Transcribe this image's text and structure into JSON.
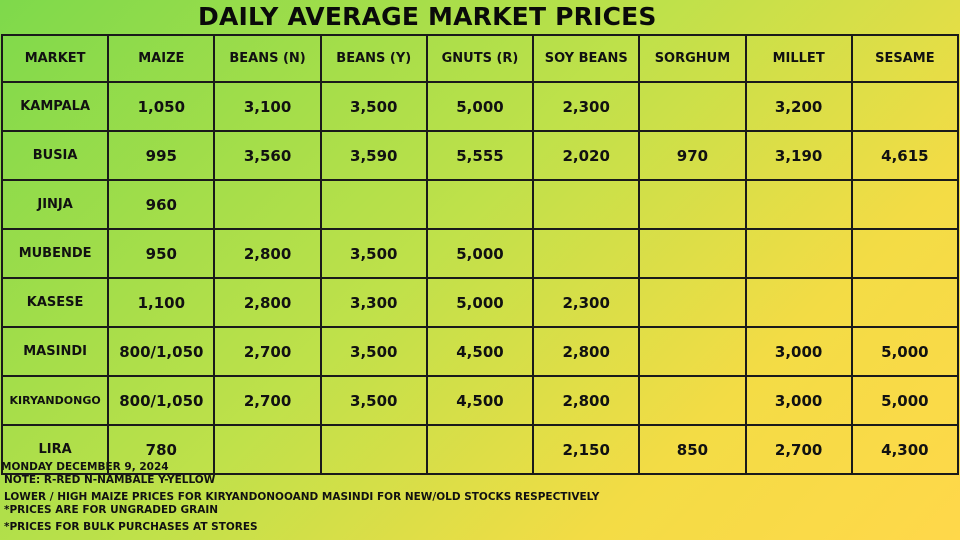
{
  "title": "DAILY AVERAGE MARKET PRICES",
  "table": {
    "headers": [
      "MARKET",
      "MAIZE",
      "BEANS (N)",
      "BEANS (Y)",
      "GNUTS (R)",
      "SOY BEANS",
      "SORGHUM",
      "MILLET",
      "SESAME"
    ],
    "rows": [
      [
        "KAMPALA",
        "1,050",
        "3,100",
        "3,500",
        "5,000",
        "2,300",
        "",
        "3,200",
        ""
      ],
      [
        "BUSIA",
        "995",
        "3,560",
        "3,590",
        "5,555",
        "2,020",
        "970",
        "3,190",
        "4,615"
      ],
      [
        "JINJA",
        "960",
        "",
        "",
        "",
        "",
        "",
        "",
        ""
      ],
      [
        "MUBENDE",
        "950",
        "2,800",
        "3,500",
        "5,000",
        "",
        "",
        "",
        ""
      ],
      [
        "KASESE",
        "1,100",
        "2,800",
        "3,300",
        "5,000",
        "2,300",
        "",
        "",
        ""
      ],
      [
        "MASINDI",
        "800/1,050",
        "2,700",
        "3,500",
        "4,500",
        "2,800",
        "",
        "3,000",
        "5,000"
      ],
      [
        "KIRYANDONGO",
        "800/1,050",
        "2,700",
        "3,500",
        "4,500",
        "2,800",
        "",
        "3,000",
        "5,000"
      ],
      [
        "LIRA",
        "780",
        "",
        "",
        "",
        "2,150",
        "850",
        "2,700",
        "4,300"
      ]
    ]
  },
  "notes": {
    "date": "MONDAY DECEMBER 9, 2024",
    "note": "NOTE: R-RED N-NAMBALE Y-YELLOW",
    "maize_note": "LOWER / HIGH MAIZE  PRICES FOR KIRYANDONOOAND MASINDI  FOR NEW/OLD  STOCKS RESPECTIVELY",
    "ungraded": "*PRICES ARE FOR UNGRADED GRAIN",
    "bulk": "*PRICES FOR BULK PURCHASES AT STORES"
  }
}
